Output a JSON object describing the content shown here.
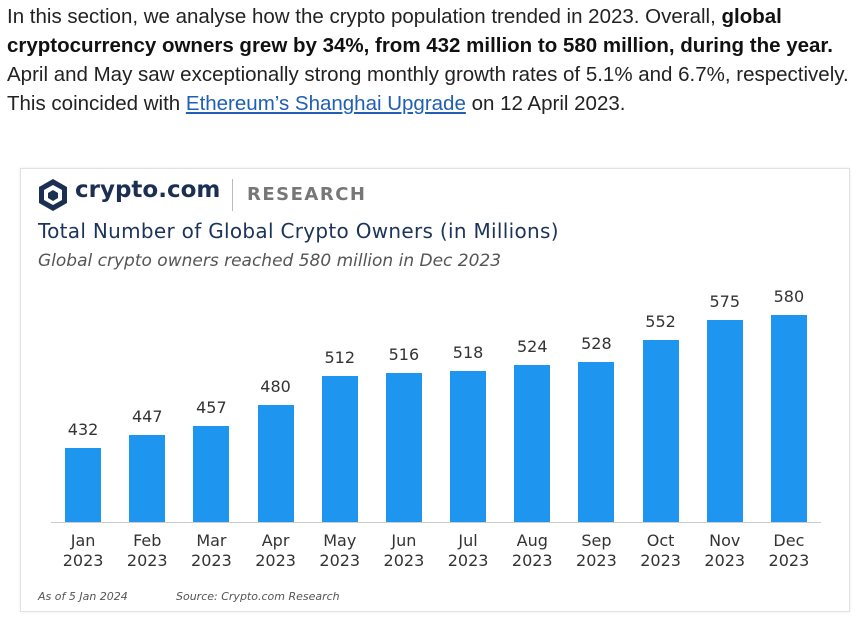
{
  "article": {
    "paragraph": [
      {
        "text": "In this section, we analyse how the crypto population trended in 2023. Overall, "
      },
      {
        "text": "global cryptocurrency owners grew by 34%, from 432 million to 580 million, during the year.",
        "bold": true
      },
      {
        "text": " April and May saw exceptionally strong monthly growth rates of 5.1% and 6.7%, respectively. This coincided with "
      },
      {
        "text": "Ethereum’s Shanghai Upgrade",
        "link": true
      },
      {
        "text": " on 12 April 2023."
      }
    ]
  },
  "chart_data": {
    "type": "bar",
    "brand": "crypto.com",
    "section": "RESEARCH",
    "title": "Total Number of Global Crypto Owners (in Millions)",
    "subtitle": "Global crypto owners reached 580 million in Dec 2023",
    "categories": [
      "Jan 2023",
      "Feb 2023",
      "Mar 2023",
      "Apr 2023",
      "May 2023",
      "Jun 2023",
      "Jul 2023",
      "Aug 2023",
      "Sep 2023",
      "Oct 2023",
      "Nov 2023",
      "Dec 2023"
    ],
    "values": [
      432,
      447,
      457,
      480,
      512,
      516,
      518,
      524,
      528,
      552,
      575,
      580
    ],
    "color": "#1e95ee",
    "ylim": [
      350,
      600
    ],
    "notes": [
      "As of 5 Jan 2024",
      "Source: Crypto.com Research"
    ]
  }
}
